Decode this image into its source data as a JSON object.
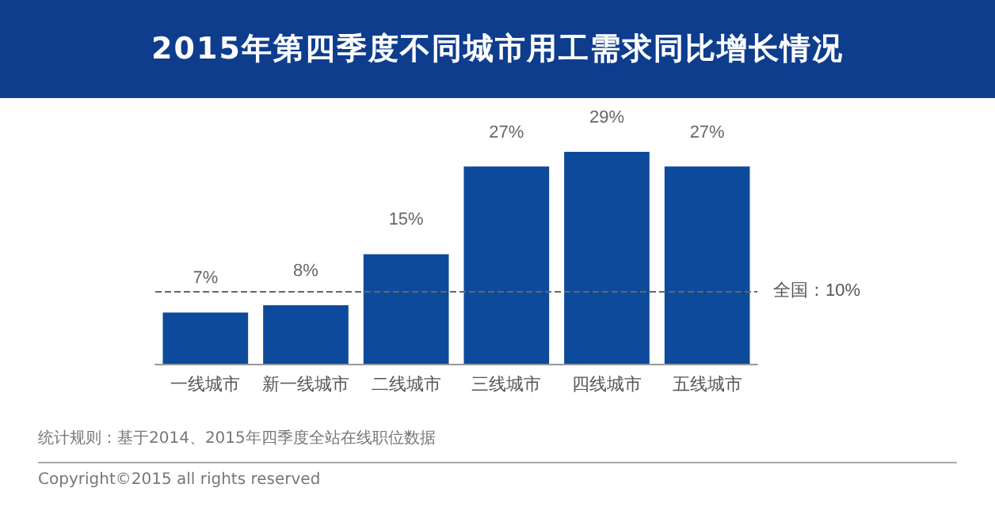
{
  "chart_data": {
    "type": "bar",
    "title": "2015年第四季度不同城市用工需求同比增长情况",
    "categories": [
      "一线城市",
      "新一线城市",
      "二线城市",
      "三线城市",
      "四线城市",
      "五线城市"
    ],
    "values": [
      7,
      8,
      15,
      27,
      29,
      27
    ],
    "color": "#0d4a9b",
    "value_labels": [
      "7%",
      "8%",
      "15%",
      "27%",
      "29%",
      "27%"
    ],
    "grid": false,
    "ref_lines": [
      {
        "axis": "y",
        "value": 10,
        "label": "全国：10%",
        "color": "#666666",
        "line_style": "dashed"
      }
    ],
    "annotations": [
      "统计规则：基于2014、2015年四季度全站在线职位数据",
      "Copyright©2015 all rights reserved"
    ]
  }
}
